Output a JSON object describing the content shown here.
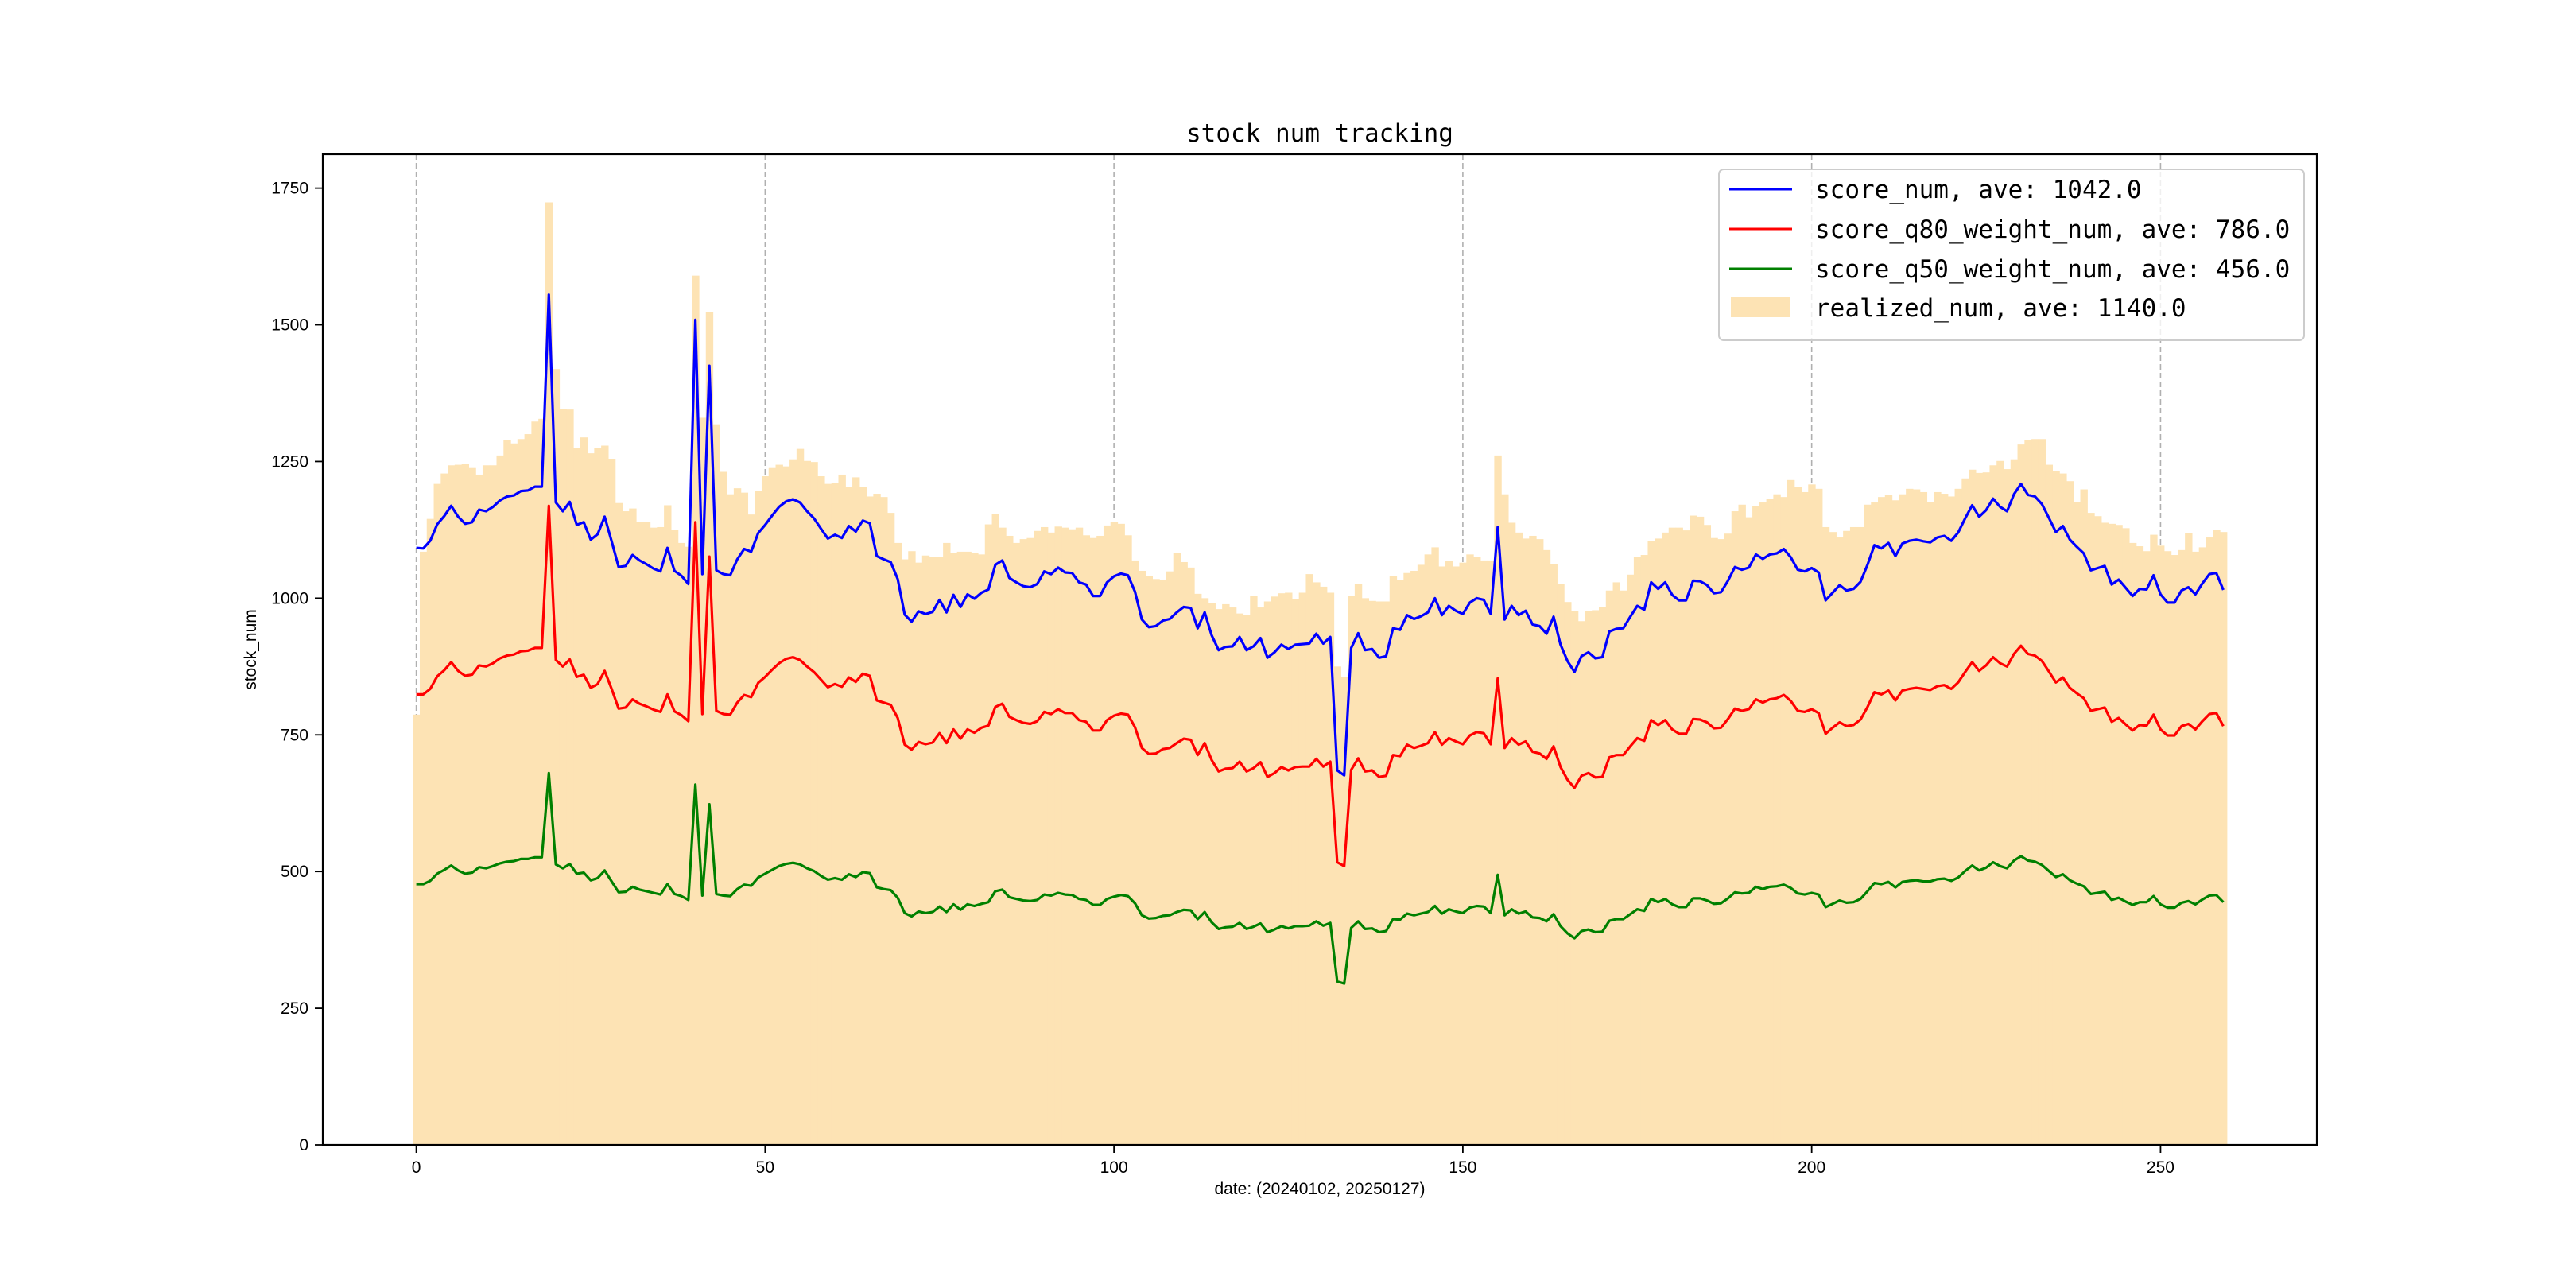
{
  "chart_data": {
    "type": "bar+line",
    "title": "stock num tracking",
    "xlabel": "date: (20240102, 20250127)",
    "ylabel": "stock_num",
    "xlim": [
      -13.4,
      272.4
    ],
    "ylim": [
      0,
      1812
    ],
    "xticks": [
      0,
      50,
      100,
      150,
      200,
      250
    ],
    "yticks": [
      0,
      250,
      500,
      750,
      1000,
      1250,
      1500,
      1750
    ],
    "grid": "vertical dashed at x ticks",
    "legend_position": "top-right",
    "bars": {
      "name": "realized_num",
      "legend": "realized_num, ave: 1140.0",
      "color": "#fde3b4",
      "values": [
        787,
        1085,
        1145,
        1209,
        1228,
        1243,
        1244,
        1246,
        1238,
        1226,
        1243,
        1243,
        1261,
        1289,
        1283,
        1291,
        1300,
        1323,
        1328,
        1724,
        1419,
        1346,
        1345,
        1274,
        1294,
        1265,
        1274,
        1279,
        1255,
        1174,
        1159,
        1164,
        1139,
        1139,
        1129,
        1130,
        1170,
        1125,
        1101,
        1094,
        1590,
        1330,
        1524,
        1318,
        1231,
        1190,
        1201,
        1193,
        1153,
        1196,
        1223,
        1238,
        1244,
        1241,
        1254,
        1273,
        1251,
        1249,
        1223,
        1209,
        1210,
        1226,
        1203,
        1221,
        1203,
        1186,
        1191,
        1185,
        1156,
        1101,
        1071,
        1086,
        1065,
        1078,
        1076,
        1075,
        1101,
        1083,
        1085,
        1085,
        1083,
        1080,
        1135,
        1154,
        1129,
        1114,
        1101,
        1108,
        1110,
        1123,
        1130,
        1120,
        1131,
        1129,
        1126,
        1129,
        1115,
        1110,
        1114,
        1133,
        1140,
        1136,
        1115,
        1069,
        1050,
        1041,
        1035,
        1034,
        1049,
        1083,
        1066,
        1056,
        1008,
        1000,
        991,
        980,
        989,
        983,
        972,
        969,
        1004,
        983,
        994,
        1003,
        1009,
        1010,
        998,
        1010,
        1044,
        1029,
        1021,
        1010,
        875,
        856,
        1004,
        1026,
        1000,
        995,
        994,
        994,
        1040,
        1033,
        1046,
        1050,
        1061,
        1080,
        1093,
        1058,
        1068,
        1058,
        1065,
        1080,
        1076,
        1069,
        1069,
        1261,
        1190,
        1138,
        1120,
        1109,
        1114,
        1108,
        1088,
        1063,
        1026,
        993,
        976,
        958,
        976,
        978,
        984,
        1014,
        1029,
        1014,
        1043,
        1075,
        1079,
        1105,
        1109,
        1120,
        1129,
        1129,
        1124,
        1151,
        1149,
        1134,
        1110,
        1108,
        1118,
        1159,
        1171,
        1148,
        1168,
        1175,
        1181,
        1190,
        1185,
        1216,
        1204,
        1194,
        1208,
        1200,
        1130,
        1121,
        1111,
        1123,
        1130,
        1130,
        1171,
        1175,
        1185,
        1189,
        1179,
        1190,
        1200,
        1199,
        1194,
        1176,
        1194,
        1191,
        1186,
        1200,
        1219,
        1235,
        1229,
        1230,
        1243,
        1251,
        1236,
        1254,
        1281,
        1289,
        1291,
        1291,
        1244,
        1233,
        1228,
        1214,
        1176,
        1199,
        1156,
        1150,
        1138,
        1136,
        1134,
        1128,
        1101,
        1095,
        1086,
        1116,
        1096,
        1086,
        1079,
        1088,
        1119,
        1085,
        1093,
        1111,
        1125,
        1121
      ]
    },
    "series": [
      {
        "name": "score_num",
        "legend": "score_num, ave: 1042.0",
        "color": "#0000ff",
        "values": [
          1092,
          1091,
          1105,
          1135,
          1150,
          1169,
          1149,
          1136,
          1139,
          1162,
          1159,
          1167,
          1179,
          1186,
          1188,
          1196,
          1197,
          1204,
          1204,
          1555,
          1175,
          1159,
          1176,
          1134,
          1139,
          1107,
          1117,
          1149,
          1104,
          1057,
          1059,
          1079,
          1069,
          1062,
          1054,
          1049,
          1092,
          1050,
          1041,
          1026,
          1509,
          1044,
          1425,
          1051,
          1044,
          1042,
          1071,
          1090,
          1085,
          1119,
          1134,
          1151,
          1167,
          1177,
          1181,
          1175,
          1159,
          1146,
          1127,
          1109,
          1116,
          1110,
          1132,
          1122,
          1142,
          1137,
          1077,
          1071,
          1066,
          1035,
          970,
          957,
          976,
          971,
          975,
          997,
          974,
          1006,
          984,
          1007,
          999,
          1010,
          1016,
          1061,
          1069,
          1037,
          1029,
          1022,
          1020,
          1026,
          1049,
          1044,
          1056,
          1047,
          1046,
          1029,
          1025,
          1004,
          1004,
          1029,
          1040,
          1045,
          1042,
          1012,
          961,
          947,
          949,
          959,
          962,
          974,
          984,
          982,
          945,
          974,
          932,
          905,
          911,
          912,
          929,
          905,
          912,
          927,
          891,
          901,
          915,
          907,
          915,
          916,
          917,
          935,
          917,
          929,
          685,
          676,
          909,
          936,
          905,
          907,
          891,
          894,
          945,
          942,
          969,
          962,
          967,
          974,
          1000,
          969,
          986,
          977,
          971,
          992,
          1000,
          997,
          971,
          1130,
          961,
          986,
          969,
          977,
          952,
          949,
          935,
          966,
          915,
          885,
          865,
          894,
          901,
          890,
          892,
          939,
          944,
          945,
          966,
          986,
          979,
          1029,
          1017,
          1029,
          1006,
          996,
          996,
          1032,
          1031,
          1024,
          1009,
          1011,
          1032,
          1057,
          1052,
          1056,
          1080,
          1072,
          1080,
          1082,
          1090,
          1075,
          1052,
          1049,
          1055,
          1047,
          996,
          1010,
          1024,
          1014,
          1017,
          1030,
          1061,
          1097,
          1091,
          1101,
          1077,
          1100,
          1105,
          1107,
          1104,
          1102,
          1111,
          1114,
          1105,
          1120,
          1146,
          1170,
          1149,
          1161,
          1182,
          1167,
          1159,
          1190,
          1209,
          1189,
          1186,
          1172,
          1147,
          1121,
          1132,
          1107,
          1094,
          1082,
          1051,
          1055,
          1059,
          1025,
          1034,
          1019,
          1004,
          1017,
          1016,
          1042,
          1007,
          992,
          992,
          1014,
          1020,
          1007,
          1027,
          1044,
          1046,
          1015
        ]
      },
      {
        "name": "score_q80_weight_num",
        "legend": "score_q80_weight_num, ave: 786.0",
        "color": "#ff0000",
        "values": [
          824,
          824,
          834,
          857,
          868,
          883,
          867,
          858,
          860,
          877,
          875,
          881,
          890,
          895,
          897,
          903,
          904,
          909,
          909,
          1169,
          887,
          875,
          888,
          856,
          860,
          836,
          843,
          867,
          834,
          798,
          800,
          815,
          807,
          802,
          796,
          792,
          824,
          793,
          786,
          775,
          1139,
          788,
          1076,
          794,
          788,
          787,
          809,
          823,
          819,
          845,
          856,
          869,
          881,
          889,
          892,
          887,
          875,
          865,
          851,
          837,
          843,
          838,
          855,
          847,
          862,
          858,
          813,
          809,
          805,
          781,
          732,
          723,
          737,
          733,
          736,
          753,
          735,
          760,
          743,
          760,
          754,
          763,
          767,
          801,
          807,
          783,
          777,
          772,
          770,
          775,
          792,
          788,
          797,
          790,
          790,
          777,
          774,
          758,
          758,
          777,
          785,
          789,
          787,
          764,
          726,
          715,
          716,
          724,
          726,
          735,
          743,
          741,
          713,
          735,
          704,
          683,
          688,
          689,
          701,
          683,
          689,
          700,
          673,
          680,
          691,
          685,
          691,
          692,
          692,
          706,
          692,
          701,
          517,
          510,
          686,
          707,
          683,
          685,
          673,
          675,
          713,
          711,
          732,
          726,
          730,
          735,
          755,
          732,
          744,
          738,
          733,
          749,
          755,
          753,
          733,
          853,
          726,
          744,
          732,
          738,
          719,
          716,
          706,
          729,
          691,
          668,
          653,
          675,
          680,
          672,
          673,
          709,
          713,
          713,
          729,
          744,
          739,
          777,
          768,
          777,
          760,
          752,
          752,
          779,
          778,
          773,
          762,
          763,
          779,
          798,
          794,
          797,
          815,
          809,
          815,
          817,
          823,
          812,
          794,
          792,
          797,
          790,
          752,
          763,
          773,
          766,
          768,
          778,
          801,
          828,
          824,
          831,
          813,
          831,
          834,
          836,
          834,
          832,
          839,
          841,
          834,
          846,
          865,
          883,
          867,
          877,
          892,
          881,
          875,
          898,
          913,
          898,
          895,
          885,
          866,
          846,
          855,
          836,
          826,
          817,
          794,
          797,
          800,
          774,
          781,
          769,
          758,
          768,
          767,
          787,
          760,
          749,
          749,
          766,
          770,
          760,
          775,
          788,
          790,
          766
        ]
      },
      {
        "name": "score_q50_weight_num",
        "legend": "score_q50_weight_num, ave: 456.0",
        "color": "#008000",
        "values": [
          477,
          477,
          483,
          496,
          503,
          511,
          502,
          496,
          498,
          508,
          506,
          510,
          515,
          518,
          519,
          523,
          523,
          526,
          526,
          680,
          513,
          506,
          514,
          496,
          498,
          484,
          488,
          502,
          482,
          462,
          463,
          472,
          467,
          464,
          461,
          458,
          477,
          459,
          455,
          448,
          659,
          456,
          623,
          459,
          456,
          455,
          468,
          476,
          474,
          489,
          496,
          503,
          510,
          514,
          516,
          513,
          506,
          501,
          492,
          485,
          488,
          485,
          495,
          490,
          499,
          497,
          471,
          468,
          466,
          452,
          424,
          418,
          427,
          424,
          426,
          436,
          426,
          440,
          430,
          440,
          437,
          441,
          444,
          464,
          467,
          453,
          450,
          447,
          446,
          448,
          458,
          456,
          461,
          458,
          457,
          450,
          448,
          439,
          439,
          450,
          454,
          457,
          455,
          442,
          420,
          414,
          415,
          419,
          420,
          426,
          430,
          429,
          413,
          426,
          407,
          395,
          398,
          399,
          406,
          395,
          399,
          405,
          389,
          394,
          400,
          396,
          400,
          400,
          401,
          409,
          401,
          406,
          299,
          295,
          397,
          409,
          395,
          396,
          389,
          391,
          413,
          412,
          423,
          420,
          423,
          426,
          437,
          423,
          431,
          427,
          424,
          434,
          437,
          436,
          424,
          494,
          420,
          431,
          423,
          427,
          416,
          415,
          409,
          422,
          400,
          387,
          378,
          391,
          394,
          389,
          390,
          410,
          413,
          413,
          422,
          431,
          428,
          450,
          444,
          450,
          440,
          435,
          435,
          451,
          451,
          447,
          441,
          442,
          451,
          462,
          460,
          461,
          472,
          468,
          472,
          473,
          476,
          470,
          460,
          458,
          461,
          458,
          435,
          441,
          447,
          443,
          444,
          450,
          464,
          479,
          477,
          481,
          471,
          481,
          483,
          484,
          482,
          482,
          486,
          487,
          483,
          489,
          501,
          511,
          502,
          507,
          517,
          510,
          506,
          520,
          528,
          520,
          518,
          512,
          501,
          490,
          495,
          484,
          478,
          473,
          459,
          461,
          463,
          448,
          452,
          445,
          439,
          444,
          444,
          455,
          440,
          434,
          434,
          443,
          446,
          440,
          449,
          456,
          457,
          444
        ]
      }
    ]
  }
}
